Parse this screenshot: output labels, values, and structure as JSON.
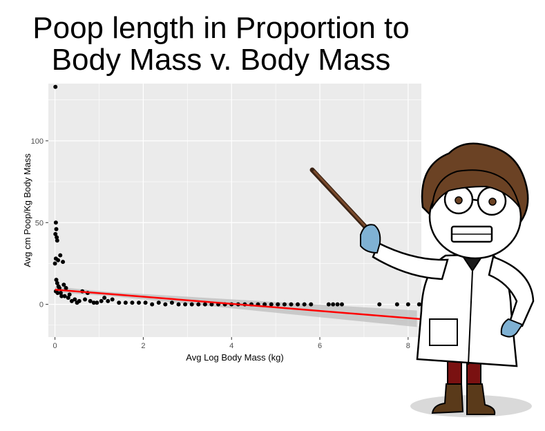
{
  "title_lines": [
    "Poop length in Proportion to",
    "Body Mass v. Body Mass"
  ],
  "colors": {
    "panel_bg": "#ebebeb",
    "grid": "#ffffff",
    "points": "#000000",
    "fit_line": "#ff0000",
    "ci_band": "#bdbdbd"
  },
  "chart_data": {
    "type": "scatter",
    "title": "Poop length in Proportion to Body Mass v. Body Mass",
    "xlabel": "Avg Log Body Mass (kg)",
    "ylabel": "Avg cm Poop/Kg Body Mass",
    "xlim": [
      -0.15,
      8.3
    ],
    "ylim": [
      -20,
      135
    ],
    "x_ticks": [
      0,
      2,
      4,
      6,
      8
    ],
    "y_ticks": [
      0,
      50,
      100
    ],
    "grid": true,
    "trend_line": {
      "x": [
        0,
        8.3
      ],
      "y": [
        9,
        -9
      ],
      "ci_band": true
    },
    "points": [
      [
        0.01,
        133
      ],
      [
        0.02,
        50
      ],
      [
        0.03,
        46
      ],
      [
        0.01,
        43
      ],
      [
        0.04,
        41
      ],
      [
        0.05,
        39
      ],
      [
        0.02,
        28
      ],
      [
        0.0,
        25
      ],
      [
        0.07,
        27
      ],
      [
        0.12,
        30
      ],
      [
        0.18,
        26
      ],
      [
        0.03,
        15
      ],
      [
        0.05,
        13
      ],
      [
        0.08,
        11
      ],
      [
        0.1,
        10
      ],
      [
        0.02,
        8
      ],
      [
        0.06,
        7
      ],
      [
        0.13,
        7
      ],
      [
        0.2,
        12
      ],
      [
        0.25,
        10
      ],
      [
        0.15,
        5
      ],
      [
        0.22,
        5
      ],
      [
        0.3,
        4
      ],
      [
        0.33,
        6
      ],
      [
        0.38,
        2
      ],
      [
        0.45,
        3
      ],
      [
        0.5,
        1
      ],
      [
        0.55,
        2
      ],
      [
        0.62,
        8
      ],
      [
        0.68,
        3
      ],
      [
        0.74,
        7
      ],
      [
        0.8,
        2
      ],
      [
        0.88,
        1
      ],
      [
        0.95,
        1
      ],
      [
        1.05,
        2
      ],
      [
        1.12,
        4
      ],
      [
        1.2,
        2
      ],
      [
        1.3,
        3
      ],
      [
        1.45,
        1
      ],
      [
        1.6,
        1
      ],
      [
        1.75,
        1
      ],
      [
        1.9,
        1
      ],
      [
        2.05,
        1
      ],
      [
        2.2,
        0
      ],
      [
        2.35,
        1
      ],
      [
        2.5,
        0
      ],
      [
        2.65,
        1
      ],
      [
        2.8,
        0
      ],
      [
        2.95,
        0
      ],
      [
        3.1,
        0
      ],
      [
        3.25,
        0
      ],
      [
        3.4,
        0
      ],
      [
        3.55,
        0
      ],
      [
        3.7,
        0
      ],
      [
        3.85,
        0
      ],
      [
        4.0,
        0
      ],
      [
        4.15,
        0
      ],
      [
        4.3,
        0
      ],
      [
        4.45,
        0
      ],
      [
        4.6,
        0
      ],
      [
        4.75,
        0
      ],
      [
        4.9,
        0
      ],
      [
        5.05,
        0
      ],
      [
        5.2,
        0
      ],
      [
        5.35,
        0
      ],
      [
        5.5,
        0
      ],
      [
        5.65,
        0
      ],
      [
        5.8,
        0
      ],
      [
        6.2,
        0
      ],
      [
        6.3,
        0
      ],
      [
        6.4,
        0
      ],
      [
        6.5,
        0
      ],
      [
        7.35,
        0
      ],
      [
        7.75,
        0
      ],
      [
        8.0,
        0
      ],
      [
        8.25,
        0
      ]
    ]
  }
}
